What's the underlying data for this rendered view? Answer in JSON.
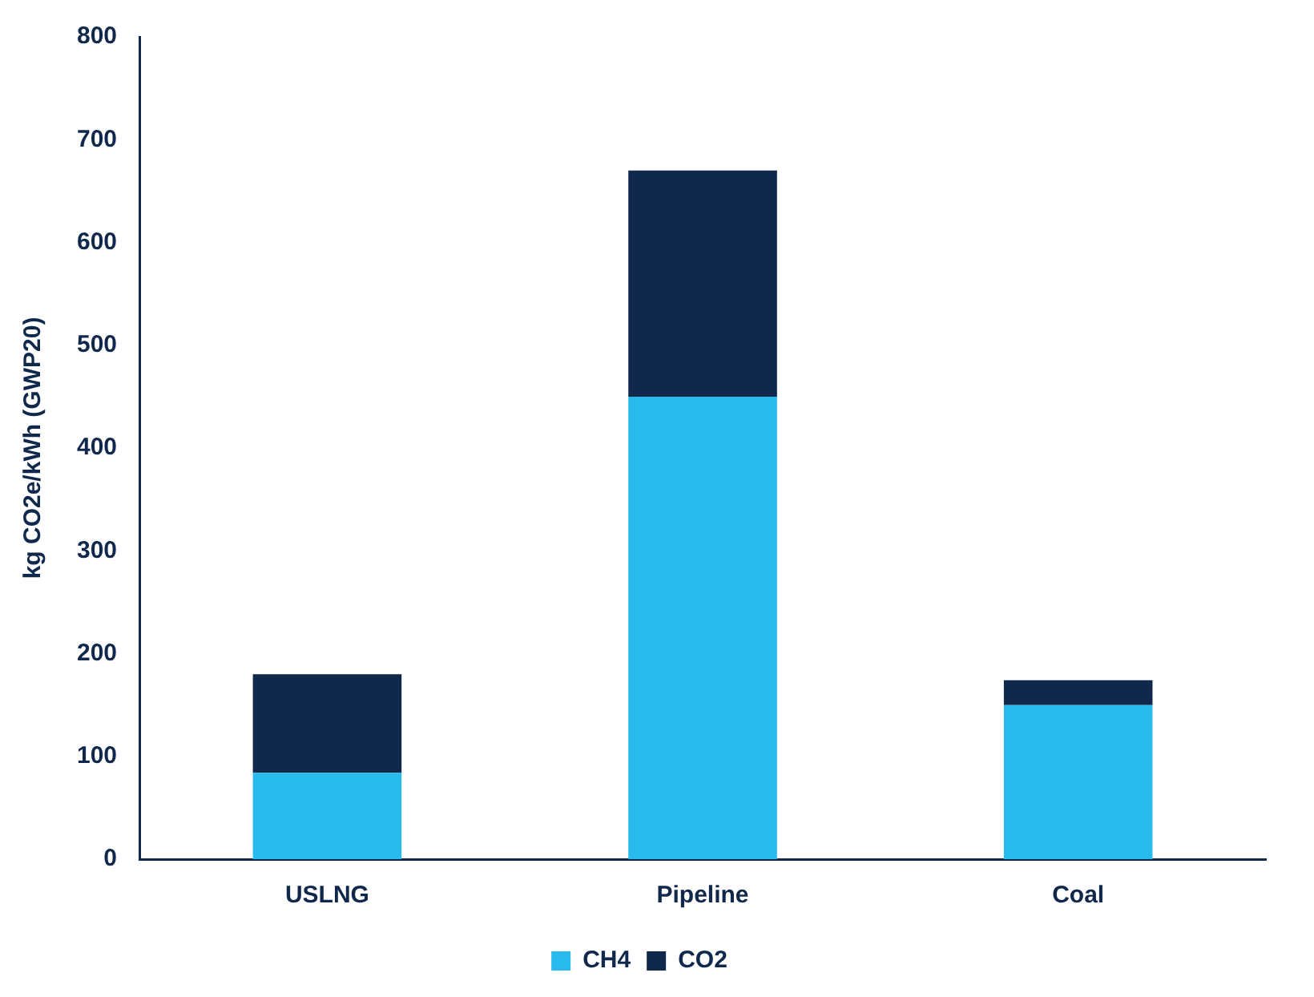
{
  "chart_data": {
    "type": "bar",
    "stacked": true,
    "ylabel": "kg CO2e/kWh (GWP20)",
    "categories": [
      "USLNG",
      "Pipeline",
      "Coal"
    ],
    "series": [
      {
        "name": "CH4",
        "color": "#29baed",
        "values": [
          84,
          450,
          150
        ]
      },
      {
        "name": "CO2",
        "color": "#10284b",
        "values": [
          96,
          220,
          24
        ]
      }
    ],
    "ylim": [
      0,
      800
    ],
    "yticks": [
      0,
      100,
      200,
      300,
      400,
      500,
      600,
      700,
      800
    ],
    "grid": false,
    "legend": "bottom"
  }
}
